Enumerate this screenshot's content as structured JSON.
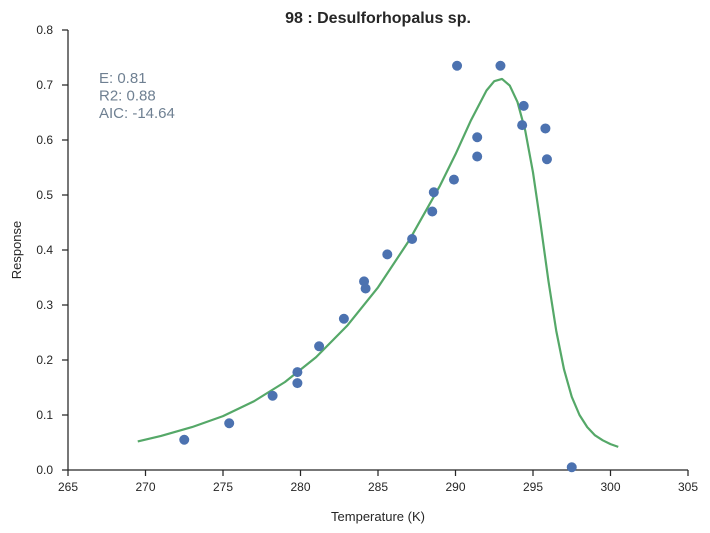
{
  "chart_data": {
    "type": "scatter",
    "title": "98 : Desulforhopalus sp.",
    "xlabel": "Temperature (K)",
    "ylabel": "Response",
    "xlim": [
      265,
      305
    ],
    "ylim": [
      0,
      0.8
    ],
    "xticks": [
      "265",
      "270",
      "275",
      "280",
      "285",
      "290",
      "295",
      "300",
      "305"
    ],
    "yticks": [
      "0.0",
      "0.1",
      "0.2",
      "0.3",
      "0.4",
      "0.5",
      "0.6",
      "0.7",
      "0.8"
    ],
    "grid": false,
    "annotations": [
      "E:  0.81",
      "R2:  0.88",
      "AIC: -14.64"
    ],
    "colors": {
      "points": "#4c72b0",
      "fit": "#55a868",
      "annotation": "#6f8092"
    },
    "points": {
      "x": [
        272.5,
        275.4,
        278.2,
        279.8,
        279.8,
        281.2,
        282.8,
        284.1,
        284.2,
        285.6,
        287.2,
        288.5,
        288.6,
        289.9,
        290.1,
        291.4,
        291.4,
        292.9,
        294.3,
        294.4,
        295.8,
        295.9,
        297.5
      ],
      "y": [
        0.055,
        0.085,
        0.135,
        0.158,
        0.178,
        0.225,
        0.275,
        0.343,
        0.33,
        0.392,
        0.42,
        0.47,
        0.505,
        0.528,
        0.735,
        0.57,
        0.605,
        0.735,
        0.627,
        0.662,
        0.621,
        0.565,
        0.005
      ]
    },
    "fit_curve": {
      "x": [
        269.5,
        271,
        273,
        275,
        277,
        279,
        281,
        283,
        285,
        287,
        289,
        290,
        291,
        292,
        292.5,
        293,
        293.5,
        294,
        294.5,
        295,
        295.5,
        296,
        296.5,
        297,
        297.5,
        298,
        298.5,
        299,
        299.5,
        300,
        300.5
      ],
      "y": [
        0.052,
        0.062,
        0.078,
        0.098,
        0.125,
        0.16,
        0.205,
        0.262,
        0.332,
        0.417,
        0.517,
        0.574,
        0.636,
        0.69,
        0.707,
        0.711,
        0.699,
        0.669,
        0.617,
        0.541,
        0.445,
        0.343,
        0.253,
        0.183,
        0.133,
        0.1,
        0.078,
        0.063,
        0.054,
        0.047,
        0.042
      ]
    }
  }
}
